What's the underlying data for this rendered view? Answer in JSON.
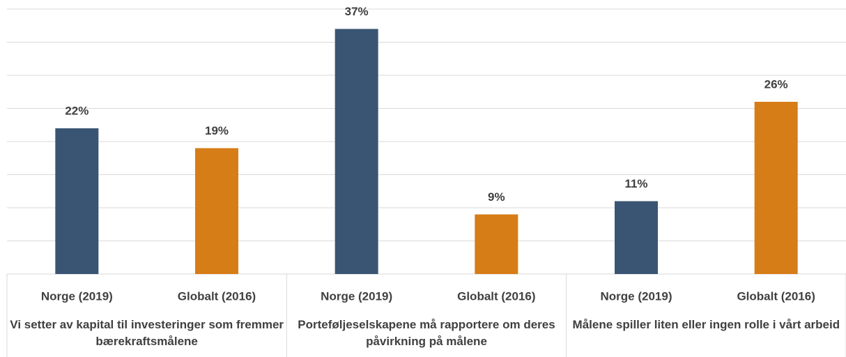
{
  "chart_data": {
    "type": "bar",
    "categories": [
      "Norge (2019)",
      "Globalt (2016)",
      "Norge (2019)",
      "Globalt (2016)",
      "Norge (2019)",
      "Globalt (2016)"
    ],
    "groups": [
      "Vi setter av kapital til investeringer som fremmer bærekraftsmålene",
      "Porteføljeselskapene må rapportere om deres påvirkning på målene",
      "Målene spiller liten eller ingen rolle i vårt arbeid"
    ],
    "values": [
      22,
      19,
      37,
      9,
      11,
      26
    ],
    "value_labels": [
      "22%",
      "19%",
      "37%",
      "9%",
      "11%",
      "26%"
    ],
    "colors": [
      "#3a5573",
      "#d67d17",
      "#3a5573",
      "#d67d17",
      "#3a5573",
      "#d67d17"
    ],
    "ylim": [
      0,
      40
    ],
    "yticks": [
      0,
      5,
      10,
      15,
      20,
      25,
      30,
      35,
      40
    ],
    "grid": true
  }
}
